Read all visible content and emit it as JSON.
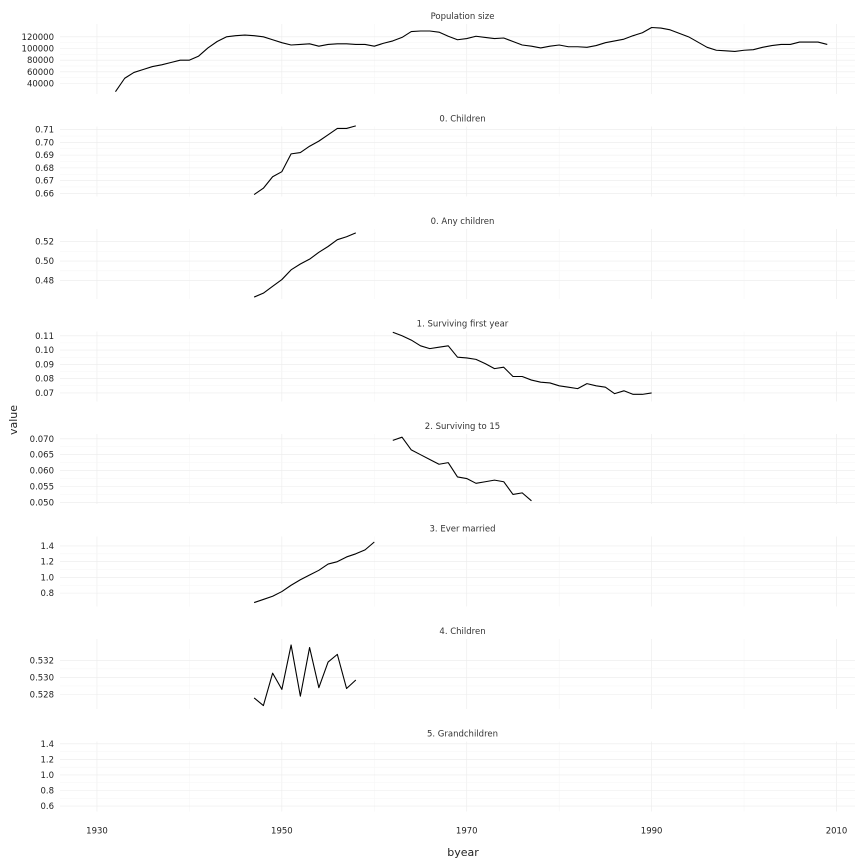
{
  "chart_data": {
    "type": "line",
    "layout": "faceted",
    "xlabel": "byear",
    "ylabel": "value",
    "xlim": [
      1926,
      2012
    ],
    "x_ticks": [
      "1930",
      "1950",
      "1970",
      "1990",
      "2010"
    ],
    "x_tick_values": [
      1930,
      1950,
      1970,
      1990,
      2010
    ],
    "grid": true,
    "panels": [
      {
        "title": "Population size",
        "ylim": [
          22000,
          142000
        ],
        "y_ticks": [
          "40000",
          "60000",
          "80000",
          "100000",
          "120000"
        ],
        "y_tick_values": [
          40000,
          60000,
          80000,
          100000,
          120000
        ],
        "series": [
          {
            "x": [
              1932,
              1933,
              1934,
              1935,
              1936,
              1937,
              1938,
              1939,
              1940,
              1941,
              1942,
              1943,
              1944,
              1945,
              1946,
              1947,
              1948,
              1949,
              1950,
              1951,
              1952,
              1953,
              1954,
              1955,
              1956,
              1957,
              1958,
              1959,
              1960,
              1961,
              1962,
              1963,
              1964,
              1965,
              1966,
              1967,
              1968,
              1969,
              1970,
              1971,
              1972,
              1973,
              1974,
              1975,
              1976,
              1977,
              1978,
              1979,
              1980,
              1981,
              1982,
              1983,
              1984,
              1985,
              1986,
              1987,
              1988,
              1989,
              1990,
              1991,
              1992,
              1993,
              1994,
              1995,
              1996,
              1997,
              1998,
              1999,
              2000,
              2001,
              2002,
              2003,
              2004,
              2005,
              2006,
              2007,
              2008,
              2009
            ],
            "y": [
              26000,
              49000,
              59000,
              64000,
              69000,
              72000,
              76000,
              80000,
              80000,
              87000,
              101000,
              112000,
              120000,
              122000,
              123000,
              122000,
              120000,
              115000,
              110000,
              106000,
              107000,
              108000,
              104000,
              107000,
              108000,
              108000,
              107000,
              107000,
              104000,
              109000,
              113000,
              119000,
              129000,
              130000,
              130000,
              128000,
              121000,
              115000,
              117000,
              121000,
              119000,
              117000,
              118000,
              112000,
              106000,
              104000,
              101000,
              104000,
              106000,
              103000,
              103000,
              102000,
              105000,
              110000,
              113000,
              116000,
              122000,
              127000,
              136000,
              135000,
              132000,
              126000,
              120000,
              111000,
              102000,
              97000,
              96000,
              95000,
              97000,
              98000,
              102000,
              105000,
              107000,
              107000,
              111000,
              111000,
              111000,
              107000
            ]
          }
        ]
      },
      {
        "title": "0. Children",
        "ylim": [
          0.6575,
          0.7125
        ],
        "y_ticks": [
          "0.66",
          "0.67",
          "0.68",
          "0.69",
          "0.70",
          "0.71"
        ],
        "y_tick_values": [
          0.66,
          0.67,
          0.68,
          0.69,
          0.7,
          0.71
        ],
        "series": [
          {
            "x": [
              1947,
              1948,
              1949,
              1950,
              1951,
              1952,
              1953,
              1954,
              1955,
              1956,
              1957,
              1958
            ],
            "y": [
              0.659,
              0.664,
              0.673,
              0.677,
              0.691,
              0.692,
              0.697,
              0.701,
              0.706,
              0.711,
              0.711,
              0.713
            ]
          }
        ]
      },
      {
        "title": "0. Any children",
        "ylim": [
          0.461,
          0.533
        ],
        "y_ticks": [
          "0.48",
          "0.50",
          "0.52"
        ],
        "y_tick_values": [
          0.48,
          0.5,
          0.52
        ],
        "series": [
          {
            "x": [
              1947,
              1948,
              1949,
              1950,
              1951,
              1952,
              1953,
              1954,
              1955,
              1956,
              1957,
              1958
            ],
            "y": [
              0.463,
              0.467,
              0.474,
              0.481,
              0.491,
              0.497,
              0.502,
              0.509,
              0.515,
              0.522,
              0.525,
              0.529
            ]
          }
        ]
      },
      {
        "title": "1. Surviving first year",
        "ylim": [
          0.064,
          0.113
        ],
        "y_ticks": [
          "0.07",
          "0.08",
          "0.09",
          "0.10",
          "0.11"
        ],
        "y_tick_values": [
          0.07,
          0.08,
          0.09,
          0.1,
          0.11
        ],
        "series": [
          {
            "x": [
              1962,
              1963,
              1964,
              1965,
              1966,
              1967,
              1968,
              1969,
              1970,
              1971,
              1972,
              1973,
              1974,
              1975,
              1976,
              1977,
              1978,
              1979,
              1980,
              1981,
              1982,
              1983,
              1984,
              1985,
              1986,
              1987,
              1988,
              1989,
              1990
            ],
            "y": [
              0.1125,
              0.11,
              0.107,
              0.103,
              0.101,
              0.102,
              0.103,
              0.095,
              0.0945,
              0.0935,
              0.0905,
              0.087,
              0.088,
              0.0815,
              0.0815,
              0.079,
              0.0775,
              0.077,
              0.075,
              0.074,
              0.073,
              0.0765,
              0.075,
              0.074,
              0.0695,
              0.0715,
              0.069,
              0.069,
              0.07
            ]
          }
        ]
      },
      {
        "title": "2. Surviving to 15",
        "ylim": [
          0.0495,
          0.0715
        ],
        "y_ticks": [
          "0.050",
          "0.055",
          "0.060",
          "0.065",
          "0.070"
        ],
        "y_tick_values": [
          0.05,
          0.055,
          0.06,
          0.065,
          0.07
        ],
        "series": [
          {
            "x": [
              1962,
              1963,
              1964,
              1965,
              1966,
              1967,
              1968,
              1969,
              1970,
              1971,
              1972,
              1973,
              1974,
              1975,
              1976,
              1977
            ],
            "y": [
              0.0695,
              0.0705,
              0.0665,
              0.065,
              0.0635,
              0.062,
              0.0625,
              0.058,
              0.0575,
              0.056,
              0.0565,
              0.057,
              0.0565,
              0.0525,
              0.053,
              0.0505
            ]
          }
        ]
      },
      {
        "title": "3. Ever married",
        "ylim": [
          0.63,
          1.52
        ],
        "y_ticks": [
          "0.8",
          "1.0",
          "1.2",
          "1.4"
        ],
        "y_tick_values": [
          0.8,
          1.0,
          1.2,
          1.4
        ],
        "series": [
          {
            "x": [
              1947,
              1948,
              1949,
              1950,
              1951,
              1952,
              1953,
              1954,
              1955,
              1956,
              1957,
              1958,
              1959,
              1960
            ],
            "y": [
              0.68,
              0.72,
              0.76,
              0.82,
              0.9,
              0.97,
              1.03,
              1.09,
              1.17,
              1.2,
              1.26,
              1.3,
              1.35,
              1.45
            ]
          }
        ]
      },
      {
        "title": "4. Children",
        "ylim": [
          0.5263,
          0.5345
        ],
        "y_ticks": [
          "0.528",
          "0.530",
          "0.532"
        ],
        "y_tick_values": [
          0.528,
          0.53,
          0.532
        ],
        "series": [
          {
            "x": [
              1947,
              1948,
              1949,
              1950,
              1951,
              1952,
              1953,
              1954,
              1955,
              1956,
              1957,
              1958
            ],
            "y": [
              0.5276,
              0.5267,
              0.5305,
              0.5286,
              0.5338,
              0.5278,
              0.5335,
              0.5288,
              0.5318,
              0.5327,
              0.5287,
              0.5297
            ]
          }
        ]
      },
      {
        "title": "5. Grandchildren",
        "ylim": [
          0.53,
          1.43
        ],
        "y_ticks": [
          "0.6",
          "0.8",
          "1.0",
          "1.2",
          "1.4"
        ],
        "y_tick_values": [
          0.6,
          0.8,
          1.0,
          1.2,
          1.4
        ],
        "series": []
      }
    ]
  }
}
